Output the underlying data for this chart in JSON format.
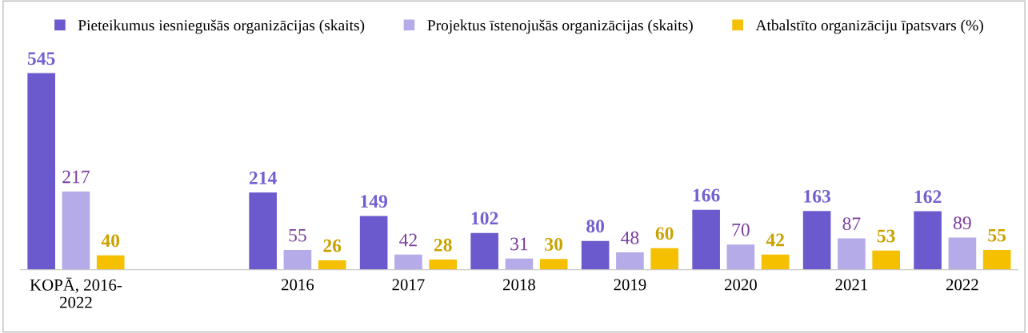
{
  "chart_data": {
    "type": "bar",
    "categories": [
      "KOPĀ, 2016-\n2022",
      null,
      "2016",
      "2017",
      "2018",
      "2019",
      "2020",
      "2021",
      "2022"
    ],
    "series": [
      {
        "name": "Pieteikumus iesniegušās organizācijas (skaits)",
        "color": "#6a5acd",
        "values": [
          545,
          null,
          214,
          149,
          102,
          80,
          166,
          163,
          162
        ]
      },
      {
        "name": "Projektus īstenojušās organizācijas (skaits)",
        "color": "#b4abe8",
        "values": [
          217,
          null,
          55,
          42,
          31,
          48,
          70,
          87,
          89
        ]
      },
      {
        "name": "Atbalstīto organizāciju īpatsvars (%)",
        "color": "#f5c000",
        "values": [
          40,
          null,
          26,
          28,
          30,
          60,
          42,
          53,
          55
        ]
      }
    ],
    "data_labels": true,
    "legend": "top",
    "grid": false,
    "tick_labels": "x"
  }
}
